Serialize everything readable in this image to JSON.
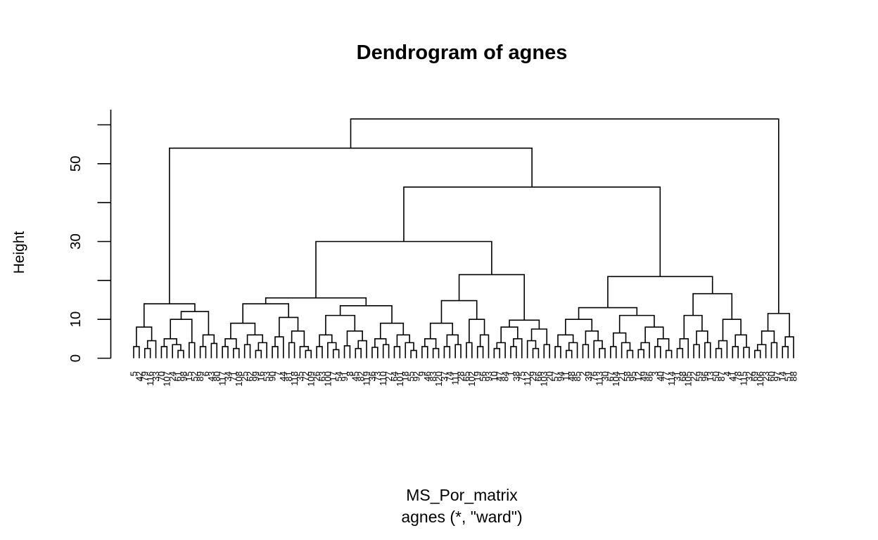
{
  "chart_data": {
    "type": "dendrogram",
    "title": "Dendrogram of agnes",
    "ylabel": "Height",
    "xlabel": "MS_Por_matrix",
    "sublabel": "agnes (*, \"ward\")",
    "ylim": [
      0,
      61.5
    ],
    "yticks": [
      {
        "v": 0,
        "label": "0"
      },
      {
        "v": 10,
        "label": "10"
      },
      {
        "v": 20,
        "label": ""
      },
      {
        "v": 30,
        "label": "30"
      },
      {
        "v": 40,
        "label": ""
      },
      {
        "v": 50,
        "label": "50"
      },
      {
        "v": 60,
        "label": ""
      }
    ],
    "grid": false,
    "legend": "none",
    "line_color": "#000000",
    "background": "#ffffff",
    "n_leaves": 120,
    "root_height": 61.5,
    "merge_tree": [
      61.5,
      [
        54,
        [
          14,
          [
            8,
            [
              3,
              "5",
              "42"
            ],
            [
              4.5,
              [
                2.5,
                "79",
                "116"
              ],
              "33"
            ]
          ],
          [
            12,
            [
              10,
              [
                5,
                [
                  3,
                  "70",
                  "107"
                ],
                [
                  3.5,
                  "24",
                  [
                    2,
                    "61",
                    "98"
                  ]
                ]
              ],
              [
                4,
                "15",
                "52"
              ]
            ],
            [
              6,
              [
                3,
                "89",
                "6"
              ],
              [
                3.8,
                "43",
                "80"
              ]
            ]
          ]
        ],
        [
          44,
          [
            30,
            [
              15.5,
              [
                14,
                [
                  9,
                  [
                    5,
                    [
                      3,
                      "117",
                      "34"
                    ],
                    [
                      2.5,
                      "71",
                      "108"
                    ]
                  ],
                  [
                    6,
                    [
                      3.5,
                      "25",
                      "62"
                    ],
                    [
                      4,
                      [
                        2,
                        "99",
                        "16"
                      ],
                      "53"
                    ]
                  ]
                ],
                [
                  10.5,
                  [
                    5.5,
                    [
                      3,
                      "90",
                      "7"
                    ],
                    "44"
                  ],
                  [
                    7,
                    [
                      4,
                      "81",
                      "118"
                    ],
                    [
                      3,
                      "35",
                      [
                        2,
                        "72",
                        "109"
                      ]
                    ]
                  ]
                ]
              ],
              [
                13.5,
                [
                  11,
                  [
                    6,
                    [
                      3,
                      "26",
                      "63"
                    ],
                    [
                      4,
                      "100",
                      [
                        2.2,
                        "17",
                        "54"
                      ]
                    ]
                  ],
                  [
                    7,
                    [
                      3.2,
                      "91",
                      "8"
                    ],
                    [
                      4.5,
                      [
                        2.5,
                        "45",
                        "82"
                      ],
                      "119"
                    ]
                  ]
                ],
                [
                  9,
                  [
                    5,
                    [
                      2.8,
                      "36",
                      "73"
                    ],
                    [
                      3.5,
                      "110",
                      "27"
                    ]
                  ],
                  [
                    6,
                    [
                      3,
                      "64",
                      "101"
                    ],
                    [
                      4,
                      "18",
                      [
                        2,
                        "55",
                        "92"
                      ]
                    ]
                  ]
                ]
              ]
            ],
            [
              21.5,
              [
                14.8,
                [
                  9,
                  [
                    5,
                    [
                      3,
                      "9",
                      "46"
                    ],
                    [
                      2.5,
                      "83",
                      "120"
                    ]
                  ],
                  [
                    6,
                    [
                      3,
                      "37",
                      "74"
                    ],
                    [
                      3.5,
                      "111",
                      "28"
                    ]
                  ]
                ],
                [
                  10,
                  [
                    4,
                    "65",
                    "102"
                  ],
                  [
                    6,
                    [
                      3,
                      "19",
                      "56"
                    ],
                    "93"
                  ]
                ]
              ],
              [
                9.8,
                [
                  8,
                  [
                    4,
                    [
                      2.5,
                      "10",
                      "47"
                    ],
                    "84"
                  ],
                  [
                    5,
                    [
                      3,
                      "1",
                      "38"
                    ],
                    "75"
                  ]
                ],
                [
                  7.5,
                  [
                    4.5,
                    "112",
                    [
                      2.5,
                      "29",
                      "66"
                    ]
                  ],
                  [
                    3.5,
                    "103",
                    "20"
                  ]
                ]
              ]
            ]
          ],
          [
            21,
            [
              13,
              [
                10,
                [
                  6,
                  [
                    3,
                    "57",
                    "94"
                  ],
                  [
                    4,
                    [
                      2,
                      "11",
                      "48"
                    ],
                    "85"
                  ]
                ],
                [
                  7,
                  [
                    3.5,
                    "2",
                    "39"
                  ],
                  [
                    4.5,
                    "76",
                    [
                      2.5,
                      "113",
                      "30"
                    ]
                  ]
                ]
              ],
              [
                11,
                [
                  6.5,
                  [
                    3,
                    "67",
                    "104"
                  ],
                  [
                    4,
                    "21",
                    [
                      2,
                      "58",
                      "95"
                    ]
                  ]
                ],
                [
                  8,
                  [
                    4,
                    [
                      2.2,
                      "12",
                      "49"
                    ],
                    "86"
                  ],
                  [
                    5,
                    [
                      3,
                      "3",
                      "40"
                    ],
                    [
                      2,
                      "77",
                      "114"
                    ]
                  ]
                ]
              ]
            ],
            [
              16.6,
              [
                11,
                [
                  5,
                  [
                    2.5,
                    "31",
                    "68"
                  ],
                  "105"
                ],
                [
                  7,
                  [
                    3.5,
                    "22",
                    "59"
                  ],
                  [
                    4,
                    "96",
                    "13"
                  ]
                ]
              ],
              [
                10,
                [
                  4.5,
                  [
                    2.5,
                    "50",
                    "87"
                  ],
                  "4"
                ],
                [
                  6,
                  [
                    3,
                    "41",
                    "78"
                  ],
                  [
                    2.8,
                    "115",
                    "32"
                  ]
                ]
              ]
            ]
          ]
        ]
      ],
      [
        11.5,
        [
          7,
          [
            3.5,
            [
              2,
              "69",
              "106"
            ],
            "23"
          ],
          [
            4,
            "60",
            "97"
          ]
        ],
        [
          5.5,
          [
            3,
            "14",
            "51"
          ],
          "88"
        ]
      ]
    ]
  }
}
